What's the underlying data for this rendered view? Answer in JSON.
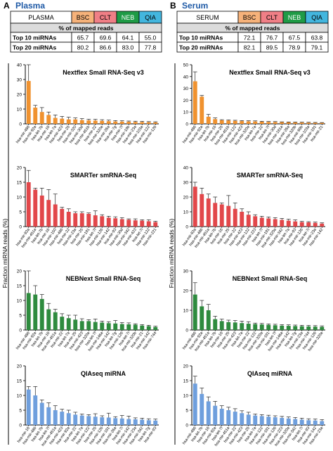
{
  "colors": {
    "heading": "#1f5aa6",
    "header_bg": "#dcdcdc",
    "BSC": "#f6b27a",
    "CLT": "#f07f86",
    "NEB": "#1f9b46",
    "QIA": "#43b6de",
    "bar_orange": "#f0922f",
    "bar_red": "#e2474a",
    "bar_green": "#2e8b3e",
    "bar_blue": "#6f9fdd"
  },
  "ylabel": "Fraction miRNA reads (%)",
  "panels": [
    {
      "letter": "A",
      "name": "Plasma",
      "table": {
        "sample": "PLASMA",
        "methods": [
          "BSC",
          "CLT",
          "NEB",
          "QIA"
        ],
        "subheader": "% of mapped reads",
        "rows": [
          {
            "label": "Top 10 miRNAs",
            "values": [
              "65.7",
              "69.6",
              "64.1",
              "55.0"
            ]
          },
          {
            "label": "Top 20 miRNAs",
            "values": [
              "80.2",
              "86.6",
              "83.0",
              "77.8"
            ]
          }
        ]
      }
    },
    {
      "letter": "B",
      "name": "Serum",
      "table": {
        "sample": "SERUM",
        "methods": [
          "BSC",
          "CLT",
          "NEB",
          "QIA"
        ],
        "subheader": "% of mapped reads",
        "rows": [
          {
            "label": "Top 10 miRNAs",
            "values": [
              "72.1",
              "76.7",
              "67.5",
              "63.8"
            ]
          },
          {
            "label": "Top 20 miRNAs",
            "values": [
              "82.1",
              "89.5",
              "78.9",
              "79.1"
            ]
          }
        ]
      }
    }
  ],
  "chart_data": [
    {
      "type": "bar",
      "panel": "A",
      "title": "Nextflex Small RNA-Seq v3",
      "ylim": [
        0,
        40
      ],
      "yticks": [
        0,
        10,
        20,
        30,
        40
      ],
      "color_key": "bar_orange",
      "categories": [
        "hsa-mir-486",
        "hsa-mir-92a",
        "hsa-let-7b",
        "hsa-mir-16",
        "hsa-let-7a",
        "hsa-mir-423",
        "hsa-mir-25",
        "hsa-mir-320",
        "hsa-mir-30d",
        "hsa-mir-451b",
        "hsa-mir-22",
        "hsa-mir-320a",
        "hsa-mir-26a",
        "hsa-mir-7g",
        "hsa-mir-7f",
        "hsa-mir-19b",
        "hsa-mir-23a",
        "hsa-mir-103a",
        "hsa-mir-122",
        "hsa-mir-126"
      ],
      "values": [
        29,
        11,
        8,
        6,
        4,
        3.5,
        3,
        3,
        2.5,
        2.3,
        2.2,
        2,
        1.8,
        1.6,
        1.5,
        1.4,
        1.3,
        1.2,
        1.1,
        1
      ],
      "errors": [
        11,
        1.5,
        3,
        2,
        2,
        1.5,
        1.5,
        1,
        1,
        0.8,
        0.8,
        0.8,
        0.7,
        0.6,
        0.6,
        0.5,
        0.5,
        0.5,
        0.4,
        0.4
      ]
    },
    {
      "type": "bar",
      "panel": "A",
      "title": "SMARTer smRNA-Seq",
      "ylim": [
        0,
        20
      ],
      "yticks": [
        0,
        5,
        10,
        15,
        20
      ],
      "color_key": "bar_red",
      "categories": [
        "hsa-mir-92a",
        "hsa-mir-451a",
        "hsa-let-7b",
        "hsa-mir-16",
        "hsa-mir-150",
        "hsa-mir-486",
        "hsa-mir-22",
        "hsa-mir-23a",
        "hsa-mir-25",
        "hsa-mir-191",
        "hsa-let-7f",
        "hsa-mir-126",
        "hsa-mir-142",
        "hsa-mir-93",
        "hsa-mir-30d",
        "hsa-mir-342",
        "hsa-mir-423",
        "hsa-let-7i",
        "hsa-mir-122",
        "hsa-mir-221"
      ],
      "values": [
        15,
        12.5,
        10.5,
        9,
        7.5,
        6,
        5,
        4.5,
        4.5,
        4.3,
        3.8,
        3.5,
        3,
        2.8,
        2.5,
        2.3,
        2.1,
        2,
        1.8,
        1.5
      ],
      "errors": [
        4,
        0.5,
        2.5,
        3.5,
        3.5,
        0.5,
        1,
        0.5,
        0.5,
        0.3,
        1.5,
        0.5,
        0.5,
        0.5,
        0.5,
        0.3,
        0.5,
        0.3,
        0.5,
        0.3
      ]
    },
    {
      "type": "bar",
      "panel": "A",
      "title": "NEBNext Small RNA-Seq",
      "ylim": [
        0,
        20
      ],
      "yticks": [
        0,
        5,
        10,
        15,
        20
      ],
      "color_key": "bar_green",
      "categories": [
        "hsa-mir-486",
        "hsa-mir-92a",
        "hsa-let-7b",
        "hsa-mir-16",
        "hsa-mir-451a",
        "hsa-mir-22",
        "hsa-let-7a",
        "hsa-mir-25",
        "hsa-mir-423",
        "hsa-mir-320a",
        "hsa-let-7f",
        "hsa-mir-146a",
        "hsa-mir-142",
        "hsa-let-7g",
        "hsa-mir-126",
        "hsa-let-7i",
        "hsa-mir-320b",
        "hsa-mir-21",
        "hsa-mir-142",
        "hsa-mir-744"
      ],
      "values": [
        12.5,
        12,
        10.5,
        7,
        6,
        4.5,
        4,
        3.5,
        3,
        3,
        2.7,
        2.5,
        2.3,
        2.2,
        2,
        1.9,
        1.8,
        1.5,
        1.3,
        1
      ],
      "errors": [
        8,
        3,
        1.5,
        2,
        1,
        1,
        1,
        1.5,
        0.8,
        0.5,
        1,
        0.5,
        0.5,
        1,
        0.5,
        0.5,
        0.3,
        0.3,
        0.3,
        0.3
      ]
    },
    {
      "type": "bar",
      "panel": "A",
      "title": "QIAseq miRNA",
      "ylim": [
        0,
        20
      ],
      "yticks": [
        0,
        5,
        10,
        15,
        20
      ],
      "color_key": "bar_blue",
      "categories": [
        "hsa-mir-16",
        "hsa-mir-486",
        "hsa-let-7b",
        "hsa-let-7f",
        "hsa-mir-451a",
        "hsa-mir-423",
        "hsa-mir-92a",
        "hsa-mir-22",
        "hsa-let-7a",
        "hsa-mir-122",
        "hsa-mir-25",
        "hsa-mir-126",
        "hsa-mir-191",
        "hsa-mir-26a",
        "hsa-let-7i",
        "hsa-mir-142",
        "hsa-mir-23a",
        "hsa-mir-342",
        "hsa-let-7g",
        "hsa-mir-93"
      ],
      "values": [
        12,
        10,
        7.5,
        6,
        5,
        4.5,
        4,
        3.5,
        3.2,
        3,
        2.8,
        2.6,
        2.5,
        2.3,
        2.2,
        2,
        1.9,
        1.8,
        1.6,
        1.5
      ],
      "errors": [
        1,
        3,
        1,
        1.5,
        1.5,
        0.8,
        1,
        0.8,
        0.5,
        0.5,
        1,
        0.5,
        1.5,
        0.5,
        1,
        1,
        0.5,
        0.5,
        0.5,
        0.5
      ]
    },
    {
      "type": "bar",
      "panel": "B",
      "title": "Nextflex Small RNA-Seq v3",
      "ylim": [
        0,
        50
      ],
      "yticks": [
        0,
        10,
        20,
        30,
        40,
        50
      ],
      "color_key": "bar_orange",
      "categories": [
        "hsa-mir-486",
        "hsa-mir-92a",
        "hsa-let-7b",
        "hsa-mir-16",
        "hsa-mir-25",
        "hsa-mir-451b",
        "hsa-mir-122",
        "hsa-mir-423",
        "hsa-mir-320a",
        "hsa-let-7a",
        "hsa-mir-22",
        "hsa-let-7f",
        "hsa-mir-30d",
        "hsa-mir-181a",
        "hsa-mir-26a",
        "hsa-mir-320b",
        "hsa-mir-99b",
        "hsa-mir-103a",
        "hsa-mir-191",
        "hsa-mir-21"
      ],
      "values": [
        36,
        23,
        6,
        4,
        3,
        2.8,
        2.5,
        2.3,
        2.1,
        2,
        1.8,
        1.6,
        1.5,
        1.4,
        1.3,
        1.2,
        1.1,
        1,
        0.9,
        0.8
      ],
      "errors": [
        8,
        1,
        2,
        1,
        0.5,
        0.5,
        0.5,
        0.5,
        0.5,
        0.5,
        0.4,
        0.4,
        0.4,
        0.3,
        0.3,
        0.3,
        0.3,
        0.3,
        0.3,
        0.3
      ]
    },
    {
      "type": "bar",
      "panel": "B",
      "title": "SMARTer smRNA-Seq",
      "ylim": [
        0,
        40
      ],
      "yticks": [
        0,
        10,
        20,
        30,
        40
      ],
      "color_key": "bar_red",
      "categories": [
        "hsa-mir-92a",
        "hsa-mir-486",
        "hsa-mir-451a",
        "hsa-let-7b",
        "hsa-mir-16",
        "hsa-mir-25",
        "hsa-mir-22",
        "hsa-mir-423",
        "hsa-mir-122",
        "hsa-mir-223",
        "hsa-let-7f",
        "hsa-mir-191",
        "hsa-mir-320a",
        "hsa-mir-342",
        "hsa-let-7a",
        "hsa-mir-93",
        "hsa-mir-126",
        "hsa-let-7i",
        "hsa-mir-23a",
        "hsa-mir-142"
      ],
      "values": [
        27,
        22,
        19,
        16,
        15,
        14,
        12,
        10,
        8,
        7,
        6,
        5.5,
        5,
        4.5,
        4,
        3.5,
        3,
        2.8,
        2.5,
        2
      ],
      "errors": [
        3,
        4,
        3,
        4,
        1,
        7,
        4,
        2,
        2,
        1,
        1,
        1,
        1,
        1,
        1,
        1,
        0.5,
        0.5,
        0.5,
        0.5
      ]
    },
    {
      "type": "bar",
      "panel": "B",
      "title": "NEBNext Small RNA-Seq",
      "ylim": [
        0,
        30
      ],
      "yticks": [
        0,
        10,
        20,
        30
      ],
      "color_key": "bar_green",
      "categories": [
        "hsa-mir-486",
        "hsa-mir-92a",
        "hsa-mir-451a",
        "hsa-let-7b",
        "hsa-mir-16",
        "hsa-mir-25",
        "hsa-mir-423",
        "hsa-let-7a",
        "hsa-mir-22",
        "hsa-mir-122",
        "hsa-mir-320a",
        "hsa-mir-191",
        "hsa-let-7f",
        "hsa-mir-146a",
        "hsa-mir-142",
        "hsa-let-7g",
        "hsa-mir-23a",
        "hsa-mir-744",
        "hsa-mir-126",
        "hsa-mir-320a"
      ],
      "values": [
        18,
        12,
        10,
        5.5,
        4.5,
        4,
        3.8,
        3.5,
        3.2,
        3,
        2.8,
        2.6,
        2.4,
        2.2,
        2.1,
        2,
        1.9,
        1.8,
        1.7,
        1.6
      ],
      "errors": [
        6,
        3,
        3,
        1.5,
        1,
        1,
        1,
        1,
        1,
        0.5,
        0.5,
        0.5,
        0.5,
        0.5,
        0.5,
        0.5,
        0.5,
        0.5,
        0.5,
        0.5
      ]
    },
    {
      "type": "bar",
      "panel": "B",
      "title": "QIAseq miRNA",
      "ylim": [
        0,
        20
      ],
      "yticks": [
        0,
        5,
        10,
        15,
        20
      ],
      "color_key": "bar_blue",
      "categories": [
        "hsa-mir-486",
        "hsa-let-7b",
        "hsa-mir-16",
        "hsa-mir-92a",
        "hsa-let-7f",
        "hsa-mir-451a",
        "hsa-mir-22",
        "hsa-mir-423",
        "hsa-mir-25",
        "hsa-let-7a",
        "hsa-mir-122",
        "hsa-mir-191",
        "hsa-mir-126",
        "hsa-mir-223",
        "hsa-mir-320a",
        "hsa-mir-342",
        "hsa-let-7i",
        "hsa-mir-93",
        "hsa-mir-142",
        "hsa-mir-23a"
      ],
      "values": [
        14,
        10.5,
        8,
        6.5,
        5.5,
        5,
        4.5,
        4,
        3.5,
        3.2,
        3,
        2.8,
        2.6,
        2.4,
        2.2,
        2,
        1.8,
        1.6,
        1.5,
        1.3
      ],
      "errors": [
        2.5,
        2,
        1.5,
        1.5,
        1,
        1,
        1,
        0.8,
        0.8,
        0.5,
        0.5,
        0.5,
        0.5,
        0.5,
        0.5,
        0.5,
        0.5,
        0.5,
        0.5,
        0.5
      ]
    }
  ]
}
